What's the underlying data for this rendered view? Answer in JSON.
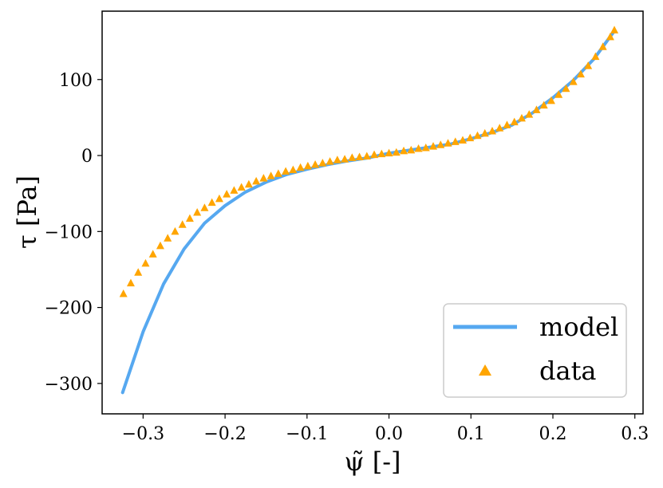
{
  "chart_data": {
    "type": "line",
    "xlabel": "ψ̃ [-]",
    "ylabel": "τ [Pa]",
    "xlim": [
      -0.35,
      0.31
    ],
    "ylim": [
      -340,
      190
    ],
    "xticks": [
      -0.3,
      -0.2,
      -0.1,
      0.0,
      0.1,
      0.2,
      0.3
    ],
    "xtick_labels": [
      "−0.3",
      "−0.2",
      "−0.1",
      "0.0",
      "0.1",
      "0.2",
      "0.3"
    ],
    "yticks": [
      100,
      0,
      -100,
      -200,
      -300
    ],
    "ytick_labels": [
      "100",
      "0",
      "−100",
      "−200",
      "−300"
    ],
    "legend_position": "lower-right",
    "colors": {
      "model": "#56a8f0",
      "data": "#ffa500"
    },
    "series": [
      {
        "name": "model",
        "type": "line",
        "x": [
          -0.325,
          -0.3,
          -0.275,
          -0.25,
          -0.225,
          -0.2,
          -0.175,
          -0.15,
          -0.125,
          -0.1,
          -0.075,
          -0.05,
          -0.025,
          0.0,
          0.025,
          0.05,
          0.075,
          0.1,
          0.125,
          0.15,
          0.175,
          0.2,
          0.225,
          0.25,
          0.275
        ],
        "y": [
          -312,
          -232,
          -169,
          -123,
          -89,
          -66,
          -48,
          -35,
          -25,
          -18,
          -12,
          -7,
          -3,
          3,
          7,
          11,
          15,
          22,
          30,
          40,
          56,
          76,
          99,
          127,
          164
        ]
      },
      {
        "name": "data",
        "type": "scatter",
        "marker": "triangle",
        "x": [
          -0.324,
          -0.315,
          -0.306,
          -0.297,
          -0.288,
          -0.279,
          -0.27,
          -0.261,
          -0.252,
          -0.243,
          -0.234,
          -0.225,
          -0.216,
          -0.207,
          -0.198,
          -0.189,
          -0.18,
          -0.171,
          -0.162,
          -0.153,
          -0.144,
          -0.135,
          -0.126,
          -0.117,
          -0.108,
          -0.099,
          -0.09,
          -0.081,
          -0.072,
          -0.063,
          -0.054,
          -0.045,
          -0.036,
          -0.027,
          -0.018,
          -0.009,
          0.0,
          0.009,
          0.018,
          0.027,
          0.036,
          0.045,
          0.054,
          0.063,
          0.072,
          0.081,
          0.09,
          0.099,
          0.108,
          0.117,
          0.126,
          0.135,
          0.144,
          0.153,
          0.162,
          0.171,
          0.18,
          0.189,
          0.198,
          0.207,
          0.216,
          0.225,
          0.234,
          0.243,
          0.252,
          0.261,
          0.27,
          0.275
        ],
        "y": [
          -182,
          -168,
          -154,
          -142,
          -130,
          -119,
          -109,
          -100,
          -91,
          -83,
          -75,
          -69,
          -62,
          -57,
          -51,
          -46,
          -42,
          -38,
          -34,
          -30,
          -27,
          -24,
          -21,
          -19,
          -16,
          -14,
          -12,
          -10,
          -8,
          -6,
          -5,
          -3,
          -2,
          -1,
          1,
          2,
          3,
          4,
          6,
          7,
          9,
          10,
          12,
          14,
          16,
          18,
          20,
          23,
          26,
          29,
          32,
          36,
          40,
          44,
          49,
          54,
          60,
          66,
          72,
          80,
          88,
          97,
          107,
          118,
          130,
          143,
          156,
          165
        ]
      }
    ]
  }
}
